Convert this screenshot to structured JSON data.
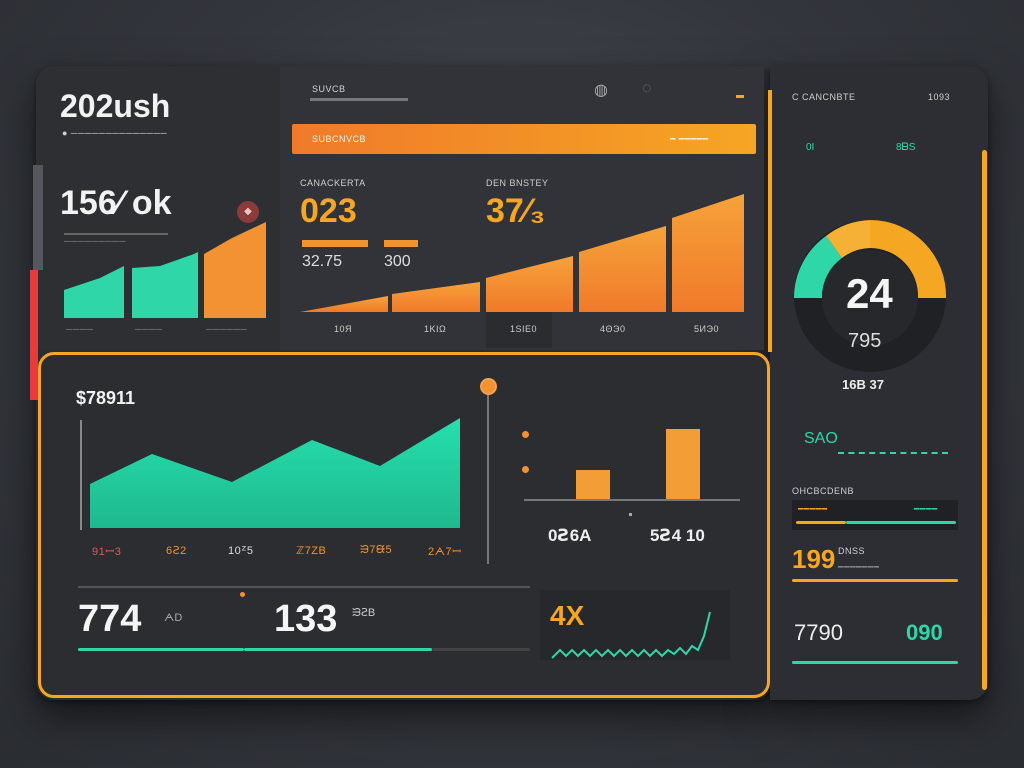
{
  "header": {
    "brand": "202ush",
    "brand_sub": "● ──────────────",
    "mid_label": "SUVCB",
    "top_icons": [
      "◍",
      "◌"
    ],
    "right_label": "C CANCNBTE",
    "right_value": "1093"
  },
  "orange_banner": {
    "left": "SUBCNVCB",
    "right": "━ ━━━━━"
  },
  "left_kpi": {
    "value": "156⁄ ok",
    "sub": "─────────",
    "badge": "◆",
    "footer": [
      "────",
      "────",
      "──────"
    ]
  },
  "mid_kpis": {
    "label1": "CANACKERTA",
    "value1": "023",
    "sub1a": "32.75",
    "sub1b": "300",
    "label2": "DEN BNSTEY",
    "value2": "37⁄₃"
  },
  "mid_chart": {
    "ticks": [
      "10Я",
      "1ΚΙΩ",
      "1SIE0",
      "4ΘЭ0",
      "5ИЭ0"
    ]
  },
  "donut": {
    "value": "24",
    "sub": "795",
    "caption": "16B 37"
  },
  "right_panel": {
    "teal_labels": [
      "0I",
      "8ᗷS"
    ],
    "spark_label": "SAO",
    "section_label": "OHCBCDENB",
    "bar_labels": [
      "━━━━━",
      "━━━━"
    ],
    "stat1_value": "199",
    "stat1_label": "DNSS",
    "stat1_sub": "━━━━━━━",
    "stat2_left": "7790",
    "stat2_right": "090"
  },
  "bottom": {
    "title": "$78911",
    "area_ticks": [
      "91ꟷ3",
      "6Ꙅ2",
      "10ᙆ5",
      "ℤ7ΖB",
      "ᙐ7ᙠ5",
      "2ᗅ7ꟷ"
    ],
    "bar_val1": "0Ꙅ6A",
    "bar_val2": "5Ꙅ4 10",
    "kpi1": "774",
    "kpi1_unit": "ᗅD",
    "kpi2": "133",
    "kpi2_unit": "ᙐꙄB",
    "kpi3": "4X"
  },
  "colors": {
    "teal": "#2fd7a8",
    "orange": "#f5a623",
    "deep_orange": "#f07a2a",
    "panel": "#2a2c30"
  }
}
